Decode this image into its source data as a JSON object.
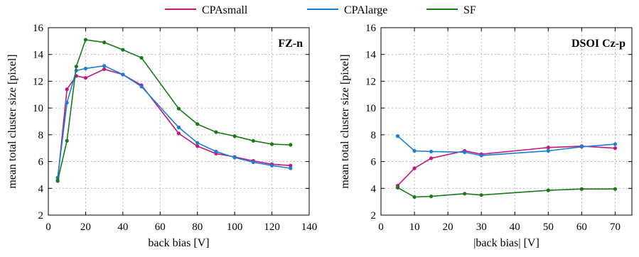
{
  "legend": {
    "items": [
      {
        "label": "CPAsmall",
        "color": "#c2187e"
      },
      {
        "label": "CPAlarge",
        "color": "#1a7fd4"
      },
      {
        "label": "SF",
        "color": "#1a7a1a"
      }
    ]
  },
  "chart_data": [
    {
      "type": "line",
      "panel_label": "FZ-n",
      "xlabel": "back bias [V]",
      "ylabel": "mean total cluster size [pixel]",
      "xlim": [
        0,
        140
      ],
      "ylim": [
        2,
        16
      ],
      "xticks": [
        0,
        20,
        40,
        60,
        80,
        100,
        120,
        140
      ],
      "yticks": [
        2,
        4,
        6,
        8,
        10,
        12,
        14,
        16
      ],
      "grid": true,
      "series": [
        {
          "name": "CPAsmall",
          "color": "#c2187e",
          "x": [
            5,
            10,
            15,
            20,
            30,
            40,
            50,
            70,
            80,
            90,
            100,
            110,
            120,
            130
          ],
          "y": [
            4.6,
            11.4,
            12.4,
            12.25,
            12.9,
            12.5,
            11.7,
            8.1,
            7.15,
            6.6,
            6.35,
            6.05,
            5.8,
            5.7
          ]
        },
        {
          "name": "CPAlarge",
          "color": "#1a7fd4",
          "x": [
            5,
            10,
            15,
            20,
            30,
            40,
            50,
            70,
            80,
            90,
            100,
            110,
            120,
            130
          ],
          "y": [
            4.8,
            10.4,
            12.8,
            12.95,
            13.15,
            12.5,
            11.6,
            8.55,
            7.4,
            6.75,
            6.3,
            5.95,
            5.7,
            5.5
          ]
        },
        {
          "name": "SF",
          "color": "#1a7a1a",
          "x": [
            5,
            10,
            15,
            20,
            30,
            40,
            50,
            70,
            80,
            90,
            100,
            110,
            120,
            130
          ],
          "y": [
            4.55,
            7.55,
            13.1,
            15.1,
            14.9,
            14.35,
            13.75,
            9.95,
            8.8,
            8.2,
            7.9,
            7.55,
            7.3,
            7.25
          ]
        }
      ]
    },
    {
      "type": "line",
      "panel_label": "DSOI Cz-p",
      "xlabel": "|back bias| [V]",
      "ylabel": "mean total cluster size [pixel]",
      "xlim": [
        0,
        75
      ],
      "ylim": [
        2,
        16
      ],
      "xticks": [
        0,
        10,
        20,
        30,
        40,
        50,
        60,
        70
      ],
      "yticks": [
        2,
        4,
        6,
        8,
        10,
        12,
        14,
        16
      ],
      "grid": true,
      "series": [
        {
          "name": "CPAsmall",
          "color": "#c2187e",
          "x": [
            5,
            10,
            15,
            25,
            30,
            50,
            60,
            70
          ],
          "y": [
            4.2,
            5.5,
            6.25,
            6.8,
            6.55,
            7.05,
            7.15,
            7.0
          ]
        },
        {
          "name": "CPAlarge",
          "color": "#1a7fd4",
          "x": [
            5,
            10,
            15,
            25,
            30,
            50,
            60,
            70
          ],
          "y": [
            7.9,
            6.8,
            6.75,
            6.7,
            6.45,
            6.8,
            7.1,
            7.3
          ]
        },
        {
          "name": "SF",
          "color": "#1a7a1a",
          "x": [
            5,
            10,
            15,
            25,
            30,
            50,
            60,
            70
          ],
          "y": [
            4.05,
            3.35,
            3.4,
            3.6,
            3.5,
            3.85,
            3.95,
            3.95
          ]
        }
      ]
    }
  ]
}
